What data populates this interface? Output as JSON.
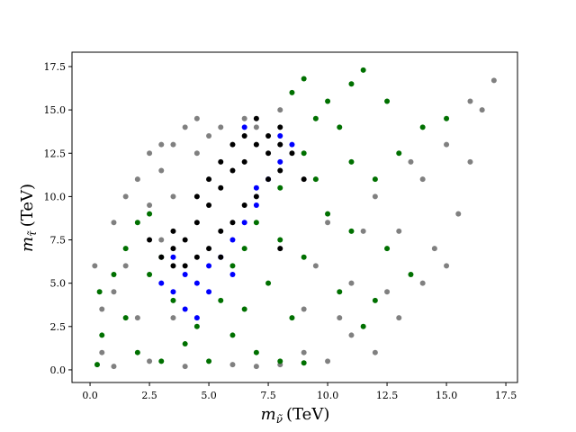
{
  "chart_data": {
    "type": "scatter",
    "x_label": {
      "symbol": "m",
      "subscript": "ν̃",
      "unit": "(TeV)"
    },
    "y_label": {
      "symbol": "m",
      "subscript": "τ̃",
      "unit": "(TeV)"
    },
    "xlim": [
      -0.76,
      17.99
    ],
    "ylim": [
      -0.73,
      18.33
    ],
    "xticks": [
      {
        "value": 0,
        "label": "0.0"
      },
      2.5,
      {
        "value": 5,
        "label": "5.0"
      },
      7.5,
      {
        "value": 10,
        "label": "10.0"
      },
      12.5,
      {
        "value": 15,
        "label": "15.0"
      },
      17.5
    ],
    "yticks": [
      {
        "value": 0,
        "label": "0.0"
      },
      2.5,
      {
        "value": 5,
        "label": "5.0"
      },
      7.5,
      {
        "value": 10,
        "label": "10.0"
      },
      12.5,
      {
        "value": 15,
        "label": "15.0"
      },
      17.5
    ],
    "marker_radius": 3,
    "series": [
      {
        "color": "#808080",
        "x": [
          0.2,
          0.5,
          1.0,
          1.5,
          2.0,
          2.5,
          3.0,
          1.0,
          1.5,
          2.5,
          3.0,
          3.5,
          4.0,
          4.5,
          2.0,
          3.0,
          3.5,
          4.5,
          5.0,
          5.5,
          6.5,
          7.0,
          8.0,
          9.0,
          10.0,
          11.0,
          12.0,
          13.0,
          14.0,
          15.0,
          16.0,
          17.0,
          16.5,
          15.5,
          14.5,
          13.5,
          12.5,
          11.5,
          10.5,
          9.5,
          14.0,
          15.0,
          16.0,
          13.0,
          12.0,
          11.0,
          10.0,
          9.0,
          8.0,
          7.0,
          6.0,
          4.0,
          3.5,
          2.5,
          1.0,
          0.5
        ],
        "y": [
          6.0,
          3.5,
          8.5,
          10.0,
          11.0,
          12.5,
          13.0,
          0.2,
          6.0,
          9.5,
          11.5,
          13.0,
          14.0,
          14.5,
          3.0,
          7.5,
          10.0,
          12.5,
          13.5,
          14.0,
          14.5,
          14.0,
          15.0,
          1.0,
          0.5,
          2.0,
          1.0,
          3.0,
          5.0,
          6.0,
          15.5,
          16.7,
          15.0,
          9.0,
          7.0,
          12.0,
          4.5,
          8.0,
          3.0,
          6.0,
          11.0,
          13.0,
          12.0,
          8.0,
          10.0,
          5.0,
          8.5,
          3.5,
          0.3,
          0.2,
          0.3,
          0.2,
          3.0,
          0.5,
          4.5,
          1.0
        ]
      },
      {
        "color": "#007000",
        "x": [
          0.3,
          0.5,
          0.4,
          1.0,
          1.5,
          2.0,
          2.5,
          3.0,
          1.5,
          2.0,
          3.0,
          4.0,
          5.0,
          6.0,
          7.0,
          8.0,
          9.0,
          8.5,
          7.5,
          6.5,
          5.5,
          4.5,
          3.5,
          2.5,
          7.0,
          8.0,
          9.0,
          9.5,
          10.0,
          11.0,
          11.5,
          8.5,
          9.0,
          10.5,
          11.0,
          12.0,
          13.0,
          14.0,
          15.0,
          9.5,
          10.0,
          11.0,
          12.5,
          13.5,
          10.5,
          11.5,
          12.0,
          9.0,
          8.0,
          6.5,
          12.5,
          6.0
        ],
        "y": [
          0.3,
          2.0,
          4.5,
          5.5,
          7.0,
          8.5,
          9.0,
          6.5,
          3.0,
          1.0,
          0.5,
          1.5,
          0.5,
          2.0,
          1.0,
          0.5,
          0.4,
          3.0,
          5.0,
          3.5,
          4.0,
          2.5,
          4.0,
          5.5,
          8.5,
          10.5,
          12.5,
          14.5,
          15.5,
          16.5,
          17.3,
          16.0,
          16.8,
          14.0,
          12.0,
          11.0,
          12.5,
          14.0,
          14.5,
          11.0,
          9.0,
          8.0,
          7.0,
          5.5,
          4.5,
          2.5,
          4.0,
          6.5,
          7.5,
          7.0,
          15.5,
          6.0
        ]
      },
      {
        "color": "#0000ff",
        "x": [
          3.0,
          3.5,
          4.0,
          4.5,
          5.0,
          5.5,
          4.0,
          4.5,
          6.0,
          6.5,
          7.0,
          7.5,
          8.0,
          8.5,
          3.5,
          5.0,
          6.0,
          7.0,
          8.0,
          6.5
        ],
        "y": [
          5.0,
          4.5,
          5.5,
          5.0,
          6.0,
          6.5,
          3.5,
          3.0,
          7.5,
          8.5,
          9.5,
          11.0,
          12.0,
          13.0,
          6.5,
          4.5,
          5.5,
          10.5,
          13.5,
          14.0
        ]
      },
      {
        "color": "#000000",
        "x": [
          3.0,
          3.5,
          4.0,
          4.5,
          5.0,
          5.5,
          6.0,
          6.5,
          7.0,
          7.5,
          8.0,
          4.0,
          5.0,
          6.0,
          7.0,
          8.0,
          3.5,
          4.5,
          5.5,
          6.5,
          7.5,
          4.5,
          5.5,
          6.5,
          7.5,
          5.0,
          6.0,
          7.0,
          8.0,
          2.5,
          3.5,
          5.5,
          8.5,
          9.0,
          8.0
        ],
        "y": [
          6.5,
          6.0,
          7.5,
          8.5,
          9.5,
          10.5,
          11.5,
          12.0,
          13.0,
          13.5,
          13.0,
          6.0,
          7.0,
          8.5,
          10.0,
          11.5,
          8.0,
          10.0,
          12.0,
          13.5,
          12.5,
          6.5,
          8.0,
          9.5,
          11.0,
          11.0,
          13.0,
          14.5,
          14.0,
          7.5,
          7.0,
          6.5,
          12.5,
          11.0,
          7.0
        ]
      }
    ]
  }
}
